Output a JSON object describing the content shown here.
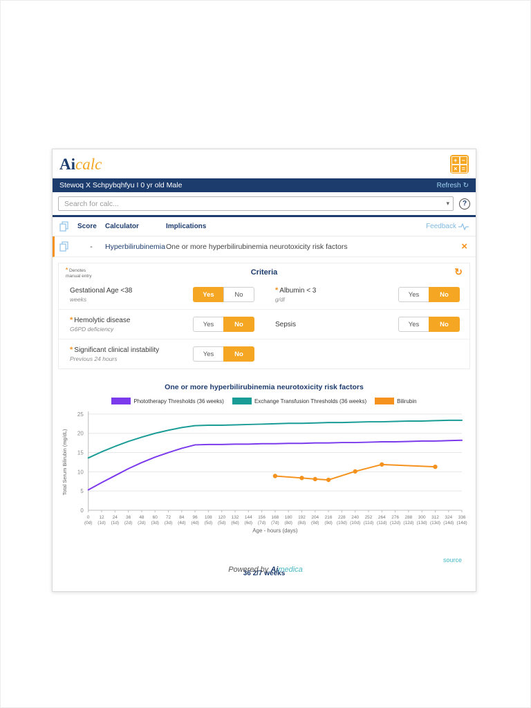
{
  "app": {
    "logo_prefix": "Ai",
    "logo_suffix": "calc",
    "calc_icon_symbols": [
      "+",
      "−",
      "×",
      "="
    ]
  },
  "patient_bar": {
    "patient_info": "Stewoq X Schpybqhfyu I 0 yr old Male",
    "refresh_label": "Refresh",
    "refresh_icon_glyph": "↻"
  },
  "search": {
    "placeholder": "Search for calc...",
    "caret_glyph": "▾",
    "help_glyph": "?"
  },
  "results_table": {
    "columns": {
      "score": "Score",
      "calculator": "Calculator",
      "implications": "Implications"
    },
    "feedback_label": "Feedback",
    "row": {
      "score": "-",
      "calculator": "Hyperbilirubinemia",
      "implications": "One or more hyperbilirubinemia neurotoxicity risk factors",
      "close_glyph": "×"
    }
  },
  "criteria": {
    "title": "Criteria",
    "asterisk_glyph": "*",
    "manual_note_line1": "Denotes",
    "manual_note_line2": "manual entry",
    "refresh_icon_glyph": "↻",
    "yes_label": "Yes",
    "no_label": "No",
    "items": [
      {
        "label": "Gestational Age <38",
        "sublabel": "weeks",
        "manual": false,
        "value": "Yes"
      },
      {
        "label": "Albumin < 3",
        "sublabel": "g/dl",
        "manual": true,
        "value": "No"
      },
      {
        "label": "Hemolytic disease",
        "sublabel": "G6PD deficiency",
        "manual": true,
        "value": "No"
      },
      {
        "label": "Sepsis",
        "sublabel": "",
        "manual": false,
        "value": "No"
      },
      {
        "label": "Significant clinical instability",
        "sublabel": "Previous 24 hours",
        "manual": true,
        "value": "No"
      }
    ]
  },
  "chart_data": {
    "type": "line",
    "title": "One or more hyperbilirubinemia neurotoxicity risk factors",
    "xlabel": "Age - hours (days)",
    "ylabel": "Total Serum Bilirubin (mg/dL)",
    "xlim": [
      0,
      336
    ],
    "ylim": [
      0,
      25
    ],
    "y_ticks": [
      0,
      5,
      10,
      15,
      20,
      25
    ],
    "grid": true,
    "legend_position": "top",
    "x_tick_hours": [
      0,
      12,
      24,
      36,
      48,
      60,
      72,
      84,
      96,
      108,
      120,
      132,
      144,
      156,
      168,
      180,
      192,
      204,
      216,
      228,
      240,
      252,
      264,
      276,
      288,
      300,
      312,
      324,
      336
    ],
    "x_tick_days": [
      "(0d)",
      "(1d)",
      "(1d)",
      "(2d)",
      "(2d)",
      "(3d)",
      "(3d)",
      "(4d)",
      "(4d)",
      "(5d)",
      "(5d)",
      "(6d)",
      "(6d)",
      "(7d)",
      "(7d)",
      "(8d)",
      "(8d)",
      "(9d)",
      "(9d)",
      "(10d)",
      "(10d)",
      "(11d)",
      "(11d)",
      "(12d)",
      "(12d)",
      "(13d)",
      "(13d)",
      "(14d)",
      "(14d)"
    ],
    "series": [
      {
        "name": "Phototherapy Thresholds (36 weeks)",
        "color": "#7c3aed",
        "markers": false,
        "x": [
          0,
          12,
          24,
          36,
          48,
          60,
          72,
          84,
          96,
          108,
          120,
          132,
          144,
          156,
          168,
          180,
          192,
          204,
          216,
          228,
          240,
          252,
          264,
          276,
          288,
          300,
          312,
          324,
          336
        ],
        "y": [
          5.3,
          7.2,
          9.0,
          10.8,
          12.4,
          13.8,
          15.0,
          16.1,
          17.0,
          17.1,
          17.1,
          17.2,
          17.2,
          17.3,
          17.3,
          17.4,
          17.4,
          17.5,
          17.5,
          17.6,
          17.6,
          17.7,
          17.8,
          17.8,
          17.9,
          18.0,
          18.0,
          18.1,
          18.2
        ]
      },
      {
        "name": "Exchange Transfusion Thresholds (36 weeks)",
        "color": "#1a9c96",
        "markers": false,
        "x": [
          0,
          12,
          24,
          36,
          48,
          60,
          72,
          84,
          96,
          108,
          120,
          132,
          144,
          156,
          168,
          180,
          192,
          204,
          216,
          228,
          240,
          252,
          264,
          276,
          288,
          300,
          312,
          324,
          336
        ],
        "y": [
          13.6,
          15.2,
          16.6,
          17.9,
          19.0,
          20.0,
          20.8,
          21.5,
          22.0,
          22.1,
          22.1,
          22.2,
          22.3,
          22.4,
          22.5,
          22.6,
          22.6,
          22.7,
          22.8,
          22.8,
          22.9,
          23.0,
          23.0,
          23.1,
          23.2,
          23.2,
          23.3,
          23.4,
          23.4
        ]
      },
      {
        "name": "Bilirubin",
        "color": "#f5921e",
        "markers": true,
        "x": [
          168,
          192,
          204,
          216,
          240,
          264,
          312
        ],
        "y": [
          8.9,
          8.4,
          8.1,
          7.9,
          10.1,
          11.9,
          11.3
        ]
      }
    ]
  },
  "chart_footer": {
    "source_label": "source",
    "gestation_label": "36 2/7 weeks"
  },
  "footer": {
    "powered_by": "Powered by ",
    "brand_prefix": "Ai",
    "brand_suffix": "medica"
  },
  "colors": {
    "navy": "#1d3c6e",
    "accent_orange": "#f5a623",
    "chart_orange": "#f5921e",
    "link_blue": "#7fb9e0",
    "chart_teal": "#1a9c96",
    "chart_purple": "#7c3aed",
    "source_teal": "#45b8c8"
  }
}
